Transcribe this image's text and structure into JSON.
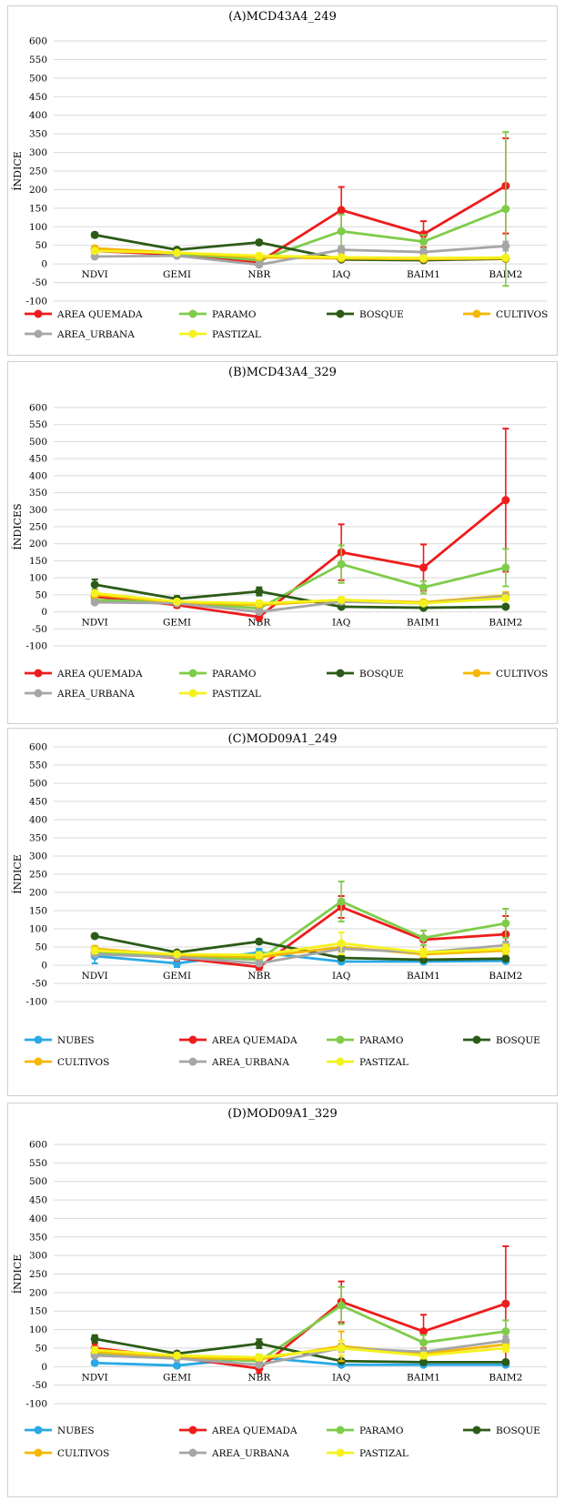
{
  "colors": {
    "NUBES": "#29a9e6",
    "AREA QUEMADA": "#ee1c1c",
    "PARAMO": "#7fcc4a",
    "BOSQUE": "#2b5b17",
    "CULTIVOS": "#f5b700",
    "AREA_URBANA": "#a6a6a6",
    "PASTIZAL": "#f5f21b"
  },
  "chart_data": [
    {
      "type": "line",
      "title": "(A)MCD43A4_249",
      "ylabel": "ÍNDICE",
      "ylim": [
        -100,
        600
      ],
      "yticks": [
        "-100",
        "-50",
        "0",
        "50",
        "100",
        "150",
        "200",
        "250",
        "300",
        "350",
        "400",
        "450",
        "500",
        "550",
        "600"
      ],
      "categories": [
        "NDVI",
        "GEMI",
        "NBR",
        "IAQ",
        "BAIM1",
        "BAIM2"
      ],
      "legend": "bottom",
      "series": [
        {
          "name": "AREA QUEMADA",
          "values": [
            35,
            25,
            5,
            145,
            80,
            210
          ],
          "err": [
            8,
            6,
            8,
            62,
            35,
            128
          ]
        },
        {
          "name": "PARAMO",
          "values": [
            40,
            28,
            10,
            88,
            60,
            148
          ],
          "err": [
            8,
            6,
            8,
            45,
            18,
            207
          ]
        },
        {
          "name": "BOSQUE",
          "values": [
            78,
            38,
            58,
            12,
            10,
            14
          ],
          "err": [
            6,
            5,
            5,
            4,
            3,
            4
          ]
        },
        {
          "name": "CULTIVOS",
          "values": [
            42,
            30,
            18,
            15,
            13,
            15
          ],
          "err": [
            6,
            5,
            6,
            5,
            4,
            5
          ]
        },
        {
          "name": "AREA_URBANA",
          "values": [
            20,
            22,
            -2,
            38,
            32,
            48
          ],
          "err": [
            6,
            5,
            6,
            10,
            8,
            12
          ]
        },
        {
          "name": "PASTIZAL",
          "values": [
            35,
            30,
            22,
            18,
            16,
            17
          ],
          "err": [
            6,
            5,
            6,
            5,
            4,
            5
          ]
        }
      ]
    },
    {
      "type": "line",
      "title": "(B)MCD43A4_329",
      "ylabel": "ÍNDICES",
      "ylim": [
        -100,
        600
      ],
      "yticks": [
        "-100",
        "-50",
        "0",
        "50",
        "100",
        "150",
        "200",
        "250",
        "300",
        "350",
        "400",
        "450",
        "500",
        "550",
        "600"
      ],
      "categories": [
        "NDVI",
        "GEMI",
        "NBR",
        "IAQ",
        "BAIM1",
        "BAIM2"
      ],
      "legend": "bottom",
      "series": [
        {
          "name": "AREA QUEMADA",
          "values": [
            45,
            20,
            -15,
            175,
            130,
            328
          ],
          "err": [
            10,
            8,
            10,
            82,
            68,
            210
          ]
        },
        {
          "name": "PARAMO",
          "values": [
            35,
            28,
            10,
            140,
            72,
            130
          ],
          "err": [
            8,
            6,
            8,
            55,
            18,
            55
          ]
        },
        {
          "name": "BOSQUE",
          "values": [
            80,
            38,
            60,
            15,
            12,
            15
          ],
          "err": [
            15,
            8,
            12,
            5,
            4,
            5
          ]
        },
        {
          "name": "CULTIVOS",
          "values": [
            50,
            28,
            20,
            35,
            28,
            48
          ],
          "err": [
            8,
            6,
            8,
            8,
            6,
            10
          ]
        },
        {
          "name": "AREA_URBANA",
          "values": [
            28,
            25,
            0,
            30,
            25,
            45
          ],
          "err": [
            6,
            5,
            6,
            6,
            6,
            8
          ]
        },
        {
          "name": "PASTIZAL",
          "values": [
            55,
            30,
            25,
            35,
            25,
            40
          ],
          "err": [
            8,
            6,
            8,
            8,
            6,
            8
          ]
        }
      ]
    },
    {
      "type": "line",
      "title": "(C)MOD09A1_249",
      "ylabel": "ÍNDICE",
      "ylim": [
        -100,
        600
      ],
      "yticks": [
        "-100",
        "-50",
        "0",
        "50",
        "100",
        "150",
        "200",
        "250",
        "300",
        "350",
        "400",
        "450",
        "500",
        "550",
        "600"
      ],
      "categories": [
        "NDVI",
        "GEMI",
        "NBR",
        "IAQ",
        "BAIM1",
        "BAIM2"
      ],
      "legend": "bottom",
      "series": [
        {
          "name": "NUBES",
          "values": [
            25,
            5,
            35,
            10,
            10,
            12
          ],
          "err": [
            20,
            10,
            10,
            5,
            4,
            5
          ]
        },
        {
          "name": "AREA QUEMADA",
          "values": [
            35,
            20,
            -5,
            160,
            70,
            85
          ],
          "err": [
            8,
            6,
            8,
            30,
            25,
            50
          ]
        },
        {
          "name": "PARAMO",
          "values": [
            35,
            25,
            15,
            175,
            75,
            115
          ],
          "err": [
            8,
            6,
            8,
            55,
            20,
            40
          ]
        },
        {
          "name": "BOSQUE",
          "values": [
            80,
            35,
            65,
            20,
            15,
            18
          ],
          "err": [
            6,
            5,
            6,
            5,
            4,
            5
          ]
        },
        {
          "name": "CULTIVOS",
          "values": [
            45,
            28,
            22,
            50,
            30,
            40
          ],
          "err": [
            8,
            6,
            8,
            10,
            8,
            10
          ]
        },
        {
          "name": "AREA_URBANA",
          "values": [
            30,
            22,
            5,
            45,
            35,
            55
          ],
          "err": [
            6,
            5,
            6,
            8,
            8,
            10
          ]
        },
        {
          "name": "PASTIZAL",
          "values": [
            40,
            30,
            28,
            60,
            35,
            45
          ],
          "err": [
            8,
            6,
            8,
            30,
            10,
            12
          ]
        }
      ]
    },
    {
      "type": "line",
      "title": "(D)MOD09A1_329",
      "ylabel": "ÍNDICE",
      "ylim": [
        -100,
        600
      ],
      "yticks": [
        "-100",
        "-50",
        "0",
        "50",
        "100",
        "150",
        "200",
        "250",
        "300",
        "350",
        "400",
        "450",
        "500",
        "550",
        "600"
      ],
      "categories": [
        "NDVI",
        "GEMI",
        "NBR",
        "IAQ",
        "BAIM1",
        "BAIM2"
      ],
      "legend": "bottom",
      "series": [
        {
          "name": "NUBES",
          "values": [
            10,
            3,
            25,
            5,
            5,
            5
          ],
          "err": [
            5,
            4,
            8,
            3,
            3,
            3
          ]
        },
        {
          "name": "AREA QUEMADA",
          "values": [
            50,
            25,
            -5,
            175,
            95,
            170
          ],
          "err": [
            12,
            8,
            12,
            55,
            45,
            155
          ]
        },
        {
          "name": "PARAMO",
          "values": [
            35,
            25,
            15,
            165,
            65,
            95
          ],
          "err": [
            8,
            6,
            8,
            50,
            20,
            30
          ]
        },
        {
          "name": "BOSQUE",
          "values": [
            75,
            35,
            62,
            15,
            12,
            12
          ],
          "err": [
            10,
            6,
            12,
            5,
            4,
            4
          ]
        },
        {
          "name": "CULTIVOS",
          "values": [
            40,
            25,
            20,
            55,
            35,
            60
          ],
          "err": [
            8,
            6,
            8,
            40,
            10,
            12
          ]
        },
        {
          "name": "AREA_URBANA",
          "values": [
            30,
            22,
            5,
            50,
            40,
            70
          ],
          "err": [
            6,
            5,
            6,
            10,
            8,
            12
          ]
        },
        {
          "name": "PASTIZAL",
          "values": [
            45,
            30,
            25,
            50,
            30,
            50
          ],
          "err": [
            8,
            6,
            8,
            20,
            8,
            10
          ]
        }
      ]
    }
  ]
}
